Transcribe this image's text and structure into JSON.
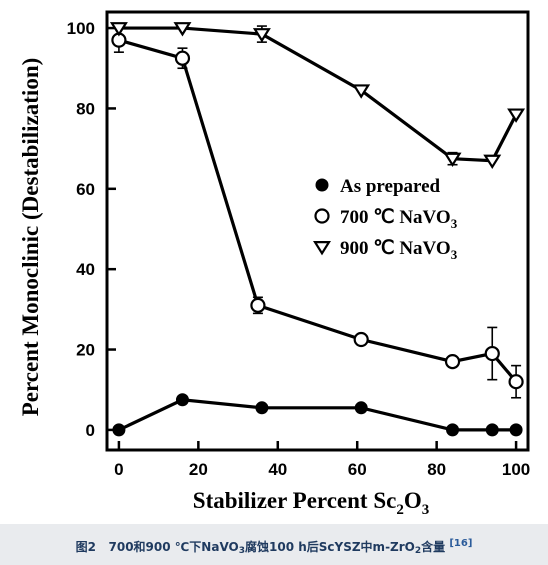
{
  "chart_data": {
    "type": "line",
    "xlabel_main": "Stabilizer Percent Sc",
    "xlabel_sub": "2",
    "xlabel_tail": "O",
    "xlabel_sub2": "3",
    "ylabel": "Percent Monoclinic (Destabilization)",
    "xlim": [
      -3,
      103
    ],
    "ylim": [
      -5,
      104
    ],
    "xticks": [
      "0",
      "20",
      "40",
      "60",
      "80",
      "100"
    ],
    "xtick_values": [
      0,
      20,
      40,
      60,
      80,
      100
    ],
    "yticks": [
      "0",
      "20",
      "40",
      "60",
      "80",
      "100"
    ],
    "ytick_values": [
      0,
      20,
      40,
      60,
      80,
      100
    ],
    "grid": false,
    "legend_position": "center-right",
    "series": [
      {
        "name": "As prepared",
        "marker": "filled-circle",
        "x": [
          0,
          16,
          36,
          61,
          84,
          94,
          100
        ],
        "y": [
          0,
          7.5,
          5.5,
          5.5,
          0,
          0,
          0
        ]
      },
      {
        "name_main": "700 ℃ NaVO",
        "name_sub": "3",
        "marker": "open-circle",
        "x": [
          0,
          16,
          35,
          61,
          84,
          94,
          100
        ],
        "y": [
          97,
          92.5,
          31,
          22.5,
          17,
          19,
          12
        ],
        "err": [
          3,
          2.5,
          2,
          1,
          1,
          6.5,
          4
        ]
      },
      {
        "name_main": "900 ℃ NaVO",
        "name_sub": "3",
        "marker": "open-triangle-down",
        "x": [
          0,
          16,
          36,
          61,
          84,
          94,
          100
        ],
        "y": [
          100,
          100,
          98.5,
          84.5,
          67.5,
          67,
          78.5
        ],
        "err": [
          0,
          0,
          2,
          0,
          1.5,
          0,
          0
        ]
      }
    ]
  },
  "caption": {
    "label": "图2",
    "text_a": "700和900 ℃下NaVO",
    "sub_a": "3",
    "text_b": "腐蚀100 h后ScYSZ中m-ZrO",
    "sub_b": "2",
    "text_c": "含量",
    "ref": "[16]"
  }
}
